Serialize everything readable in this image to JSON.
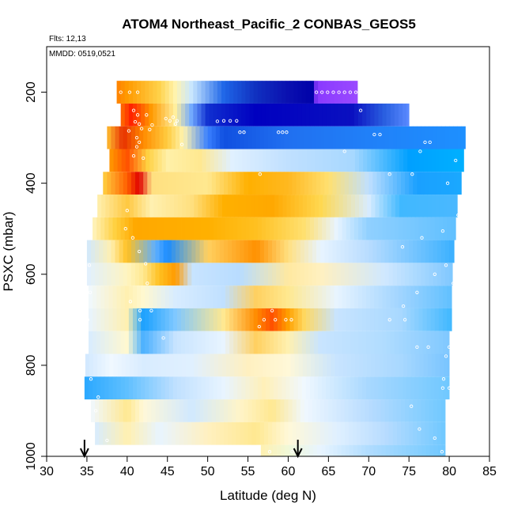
{
  "chart_data": {
    "type": "heatmap",
    "title": "ATOM4 Northeast_Pacific_2 CONBAS_GEOS5",
    "subtitle_flights": "Flts: 12,13",
    "subtitle_dates": "MMDD: 0519,0521",
    "xlabel": "Latitude (deg N)",
    "ylabel": "PSXC (mbar)",
    "xlim": [
      30,
      85
    ],
    "ylim": [
      1000,
      100
    ],
    "xticks": [
      "30",
      "35",
      "40",
      "45",
      "50",
      "55",
      "60",
      "65",
      "70",
      "75",
      "80",
      "85"
    ],
    "yticks": [
      "200",
      "400",
      "600",
      "800",
      "1000"
    ],
    "grid": false,
    "arrows_at_latitude": [
      34.7,
      61.2
    ],
    "curtain_rows": [
      {
        "p": 200,
        "lat0": 38.7,
        "lat1": 68.6,
        "stops": [
          [
            38.7,
            "#ff8000"
          ],
          [
            40,
            "#ff9a00"
          ],
          [
            44,
            "#ffd24a"
          ],
          [
            46,
            "#fff4b0"
          ],
          [
            48,
            "#c8e6ff"
          ],
          [
            52,
            "#1f66e8"
          ],
          [
            56,
            "#1030c0"
          ],
          [
            60,
            "#0a10b0"
          ],
          [
            63.2,
            "#0000a8"
          ],
          [
            63.5,
            "#8a3aff"
          ],
          [
            68.6,
            "#9a4aff"
          ]
        ]
      },
      {
        "p": 250,
        "lat0": 39.2,
        "lat1": 75.0,
        "stops": [
          [
            39.2,
            "#ff7000"
          ],
          [
            40.5,
            "#ff2000"
          ],
          [
            43,
            "#ff9a00"
          ],
          [
            46,
            "#fff0a0"
          ],
          [
            48,
            "#6fa8ff"
          ],
          [
            50,
            "#1030d0"
          ],
          [
            56,
            "#0000c0"
          ],
          [
            68,
            "#0a10c0"
          ],
          [
            72,
            "#2a60e0"
          ],
          [
            75,
            "#5a8aff"
          ]
        ]
      },
      {
        "p": 300,
        "lat0": 37.5,
        "lat1": 82.0,
        "stops": [
          [
            37.5,
            "#ffc030"
          ],
          [
            39.5,
            "#e83000"
          ],
          [
            42,
            "#ff8c00"
          ],
          [
            45,
            "#ffcc40"
          ],
          [
            47,
            "#fff4b0"
          ],
          [
            50,
            "#3a80ff"
          ],
          [
            52,
            "#1050e0"
          ],
          [
            60,
            "#2070f0"
          ],
          [
            70,
            "#2080f8"
          ],
          [
            82,
            "#1e90ff"
          ]
        ]
      },
      {
        "p": 350,
        "lat0": 37.8,
        "lat1": 81.8,
        "stops": [
          [
            37.8,
            "#ff9a00"
          ],
          [
            40,
            "#ff5000"
          ],
          [
            42.5,
            "#ffd040"
          ],
          [
            45,
            "#fff0a8"
          ],
          [
            49,
            "#ffe890"
          ],
          [
            53,
            "#e0f0ff"
          ],
          [
            60,
            "#c0e0ff"
          ],
          [
            68,
            "#a8d8ff"
          ],
          [
            75,
            "#00a0ff"
          ],
          [
            81.8,
            "#00b0ff"
          ]
        ]
      },
      {
        "p": 400,
        "lat0": 37.0,
        "lat1": 81.5,
        "stops": [
          [
            37,
            "#ffd040"
          ],
          [
            40,
            "#ff6000"
          ],
          [
            41.5,
            "#e00000"
          ],
          [
            43,
            "#ffe080"
          ],
          [
            50,
            "#ffe890"
          ],
          [
            55,
            "#ffb000"
          ],
          [
            60,
            "#ffb820"
          ],
          [
            65,
            "#ffe070"
          ],
          [
            70,
            "#c0e0ff"
          ],
          [
            76,
            "#1aa0ff"
          ],
          [
            81.5,
            "#1aa8ff"
          ]
        ]
      },
      {
        "p": 450,
        "lat0": 36.3,
        "lat1": 81.0,
        "stops": [
          [
            36.3,
            "#fff0b0"
          ],
          [
            40,
            "#ffc840"
          ],
          [
            43,
            "#fff0b0"
          ],
          [
            48,
            "#ffe080"
          ],
          [
            52,
            "#ffb000"
          ],
          [
            58,
            "#ffa800"
          ],
          [
            64,
            "#ffd850"
          ],
          [
            70,
            "#d8ecff"
          ],
          [
            74,
            "#40b8ff"
          ],
          [
            81,
            "#4ab8ff"
          ]
        ]
      },
      {
        "p": 500,
        "lat0": 35.7,
        "lat1": 80.8,
        "stops": [
          [
            35.7,
            "#fff4c0"
          ],
          [
            38.5,
            "#ffd040"
          ],
          [
            41,
            "#ffa800"
          ],
          [
            50,
            "#ffb000"
          ],
          [
            56,
            "#ffc020"
          ],
          [
            62,
            "#ffe070"
          ],
          [
            66,
            "#e8f4ff"
          ],
          [
            70,
            "#90d0ff"
          ],
          [
            80.8,
            "#60c0ff"
          ]
        ]
      },
      {
        "p": 550,
        "lat0": 35.0,
        "lat1": 80.6,
        "stops": [
          [
            35,
            "#d0e8ff"
          ],
          [
            38,
            "#fff0b0"
          ],
          [
            40,
            "#ffc020"
          ],
          [
            43.5,
            "#60b0ff"
          ],
          [
            45,
            "#1a8cff"
          ],
          [
            50,
            "#ffd060"
          ],
          [
            56,
            "#ff9000"
          ],
          [
            60,
            "#ffe080"
          ],
          [
            64,
            "#e8f4ff"
          ],
          [
            70,
            "#b8dcff"
          ],
          [
            80.6,
            "#3ab0ff"
          ]
        ]
      },
      {
        "p": 600,
        "lat0": 35.0,
        "lat1": 80.4,
        "stops": [
          [
            35,
            "#e0f0ff"
          ],
          [
            40,
            "#fff4c0"
          ],
          [
            42,
            "#ffe890"
          ],
          [
            44,
            "#ffc020"
          ],
          [
            46,
            "#ff9a00"
          ],
          [
            48,
            "#c8e4ff"
          ],
          [
            54,
            "#b8dcff"
          ],
          [
            60,
            "#ffe8a0"
          ],
          [
            64,
            "#fff0c0"
          ],
          [
            72,
            "#d0e8ff"
          ],
          [
            80.4,
            "#80c8ff"
          ]
        ]
      },
      {
        "p": 650,
        "lat0": 35.2,
        "lat1": 80.3,
        "stops": [
          [
            35.2,
            "#f0f8ff"
          ],
          [
            40,
            "#fff0b0"
          ],
          [
            42,
            "#fff8d0"
          ],
          [
            46,
            "#d8ecff"
          ],
          [
            52,
            "#c0e0ff"
          ],
          [
            56,
            "#ffd060"
          ],
          [
            60,
            "#ffe890"
          ],
          [
            66,
            "#e8f4ff"
          ],
          [
            74,
            "#a0d4ff"
          ],
          [
            80.3,
            "#60c0ff"
          ]
        ]
      },
      {
        "p": 700,
        "lat0": 35.2,
        "lat1": 80.3,
        "stops": [
          [
            35.2,
            "#e8f4ff"
          ],
          [
            40,
            "#fff0b0"
          ],
          [
            42,
            "#1aa0ff"
          ],
          [
            46,
            "#80c8ff"
          ],
          [
            52,
            "#ffe890"
          ],
          [
            56,
            "#ff8c00"
          ],
          [
            58,
            "#ff5000"
          ],
          [
            60,
            "#ffa000"
          ],
          [
            62,
            "#ffd860"
          ],
          [
            66,
            "#c8e4ff"
          ],
          [
            74,
            "#a8d8ff"
          ],
          [
            80.3,
            "#40b8ff"
          ]
        ]
      },
      {
        "p": 750,
        "lat0": 35.2,
        "lat1": 80.0,
        "stops": [
          [
            35.2,
            "#d8ecff"
          ],
          [
            40,
            "#fff8d0"
          ],
          [
            42,
            "#4ab0ff"
          ],
          [
            46,
            "#c8e4ff"
          ],
          [
            52,
            "#e8f4ff"
          ],
          [
            56,
            "#ffd060"
          ],
          [
            60,
            "#fff0b0"
          ],
          [
            64,
            "#c8e4ff"
          ],
          [
            72,
            "#b0dcff"
          ],
          [
            80,
            "#80c8ff"
          ]
        ]
      },
      {
        "p": 800,
        "lat0": 34.8,
        "lat1": 80.0,
        "stops": [
          [
            34.8,
            "#d0e8ff"
          ],
          [
            38,
            "#f0f8ff"
          ],
          [
            42,
            "#d8ecff"
          ],
          [
            48,
            "#e0f0ff"
          ],
          [
            55,
            "#fff0c0"
          ],
          [
            60,
            "#fff8d8"
          ],
          [
            66,
            "#c8e4ff"
          ],
          [
            74,
            "#a8d8ff"
          ],
          [
            80,
            "#78c4ff"
          ]
        ]
      },
      {
        "p": 850,
        "lat0": 34.7,
        "lat1": 80.0,
        "stops": [
          [
            34.7,
            "#2aa8ff"
          ],
          [
            40,
            "#60c0ff"
          ],
          [
            46,
            "#c0e0ff"
          ],
          [
            52,
            "#e8f4ff"
          ],
          [
            57,
            "#fff0b8"
          ],
          [
            62,
            "#f0f8ff"
          ],
          [
            70,
            "#a8d8ff"
          ],
          [
            80,
            "#70c8ff"
          ]
        ]
      },
      {
        "p": 900,
        "lat0": 35.5,
        "lat1": 79.5,
        "stops": [
          [
            35.5,
            "#f0f8ff"
          ],
          [
            40,
            "#ffe890"
          ],
          [
            42,
            "#fff8d8"
          ],
          [
            48,
            "#d0e8ff"
          ],
          [
            54,
            "#fff4c8"
          ],
          [
            58,
            "#ffe890"
          ],
          [
            62,
            "#f0f8ff"
          ],
          [
            70,
            "#b8dcff"
          ],
          [
            79.5,
            "#70c8ff"
          ]
        ]
      },
      {
        "p": 950,
        "lat0": 36.0,
        "lat1": 79.5,
        "stops": [
          [
            36,
            "#d8ecff"
          ],
          [
            40,
            "#fff0b0"
          ],
          [
            44,
            "#e8f4ff"
          ],
          [
            50,
            "#fff0c0"
          ],
          [
            56,
            "#ffe890"
          ],
          [
            60,
            "#fff8d8"
          ],
          [
            66,
            "#e0f0ff"
          ],
          [
            72,
            "#b8dcff"
          ],
          [
            79.5,
            "#70c8ff"
          ]
        ]
      },
      {
        "p": 1000,
        "lat0": 56.6,
        "lat1": 79.5,
        "stops": [
          [
            56.6,
            "#fff0b0"
          ],
          [
            60,
            "#f0f8d8"
          ],
          [
            64,
            "#e8f4ff"
          ],
          [
            70,
            "#b0dcff"
          ],
          [
            79.5,
            "#70c8ff"
          ]
        ]
      }
    ],
    "markers": [
      [
        39.2,
        200
      ],
      [
        40.3,
        200
      ],
      [
        41.3,
        200
      ],
      [
        63.5,
        200
      ],
      [
        64.2,
        200
      ],
      [
        64.9,
        200
      ],
      [
        65.6,
        200
      ],
      [
        66.3,
        200
      ],
      [
        67,
        200
      ],
      [
        67.7,
        200
      ],
      [
        68.4,
        200
      ],
      [
        69,
        240
      ],
      [
        40.8,
        240
      ],
      [
        41.3,
        250
      ],
      [
        42.4,
        250
      ],
      [
        45.7,
        255
      ],
      [
        46.2,
        263
      ],
      [
        51.2,
        264
      ],
      [
        52,
        263
      ],
      [
        52.8,
        263
      ],
      [
        53.6,
        263
      ],
      [
        54,
        288
      ],
      [
        54.5,
        288
      ],
      [
        58.8,
        288
      ],
      [
        59.3,
        288
      ],
      [
        59.8,
        288
      ],
      [
        70.7,
        293
      ],
      [
        71.4,
        293
      ],
      [
        77,
        310
      ],
      [
        77.6,
        310
      ],
      [
        41,
        265
      ],
      [
        41.5,
        270
      ],
      [
        41.8,
        280
      ],
      [
        40.2,
        285
      ],
      [
        41.2,
        300
      ],
      [
        41.5,
        310
      ],
      [
        41.2,
        320
      ],
      [
        40.8,
        340
      ],
      [
        42,
        345
      ],
      [
        44.8,
        258
      ],
      [
        45.3,
        263
      ],
      [
        46,
        270
      ],
      [
        43.1,
        272
      ],
      [
        42.8,
        282
      ],
      [
        46.8,
        315
      ],
      [
        56.5,
        380
      ],
      [
        67,
        330
      ],
      [
        40,
        460
      ],
      [
        39.8,
        500
      ],
      [
        40.7,
        520
      ],
      [
        41.5,
        550
      ],
      [
        42.3,
        577
      ],
      [
        42.5,
        620
      ],
      [
        40.4,
        660
      ],
      [
        41.6,
        680
      ],
      [
        41.6,
        700
      ],
      [
        43,
        680
      ],
      [
        44.5,
        740
      ],
      [
        57,
        700
      ],
      [
        58.4,
        700
      ],
      [
        59.7,
        700
      ],
      [
        60.4,
        700
      ],
      [
        58,
        680
      ],
      [
        56.4,
        715
      ],
      [
        35.3,
        580
      ],
      [
        35.4,
        640
      ],
      [
        35.1,
        700
      ],
      [
        35,
        760
      ],
      [
        35.5,
        830
      ],
      [
        36.4,
        870
      ],
      [
        36.1,
        900
      ],
      [
        37.5,
        965
      ],
      [
        36.4,
        1000
      ],
      [
        41.4,
        980
      ],
      [
        50.7,
        1000
      ],
      [
        54.8,
        990
      ],
      [
        55.6,
        990
      ],
      [
        57.7,
        990
      ],
      [
        60.5,
        990
      ],
      [
        61.3,
        1000
      ],
      [
        72.6,
        700
      ],
      [
        74.5,
        700
      ],
      [
        76,
        760
      ],
      [
        77.4,
        760
      ],
      [
        79.6,
        780
      ],
      [
        79.3,
        830
      ],
      [
        80,
        850
      ],
      [
        79.2,
        850
      ],
      [
        75.3,
        890
      ],
      [
        76.3,
        940
      ],
      [
        79.1,
        990
      ],
      [
        78.2,
        960
      ],
      [
        72.6,
        380
      ],
      [
        75.4,
        380
      ],
      [
        76.4,
        330
      ],
      [
        80.8,
        350
      ],
      [
        79.8,
        400
      ],
      [
        81.1,
        470
      ],
      [
        79.2,
        505
      ],
      [
        76.6,
        520
      ],
      [
        74.2,
        540
      ],
      [
        79.6,
        580
      ],
      [
        78.2,
        600
      ],
      [
        80.5,
        620
      ],
      [
        76,
        640
      ],
      [
        74.3,
        670
      ],
      [
        80,
        760
      ],
      [
        80.5,
        800
      ]
    ]
  }
}
